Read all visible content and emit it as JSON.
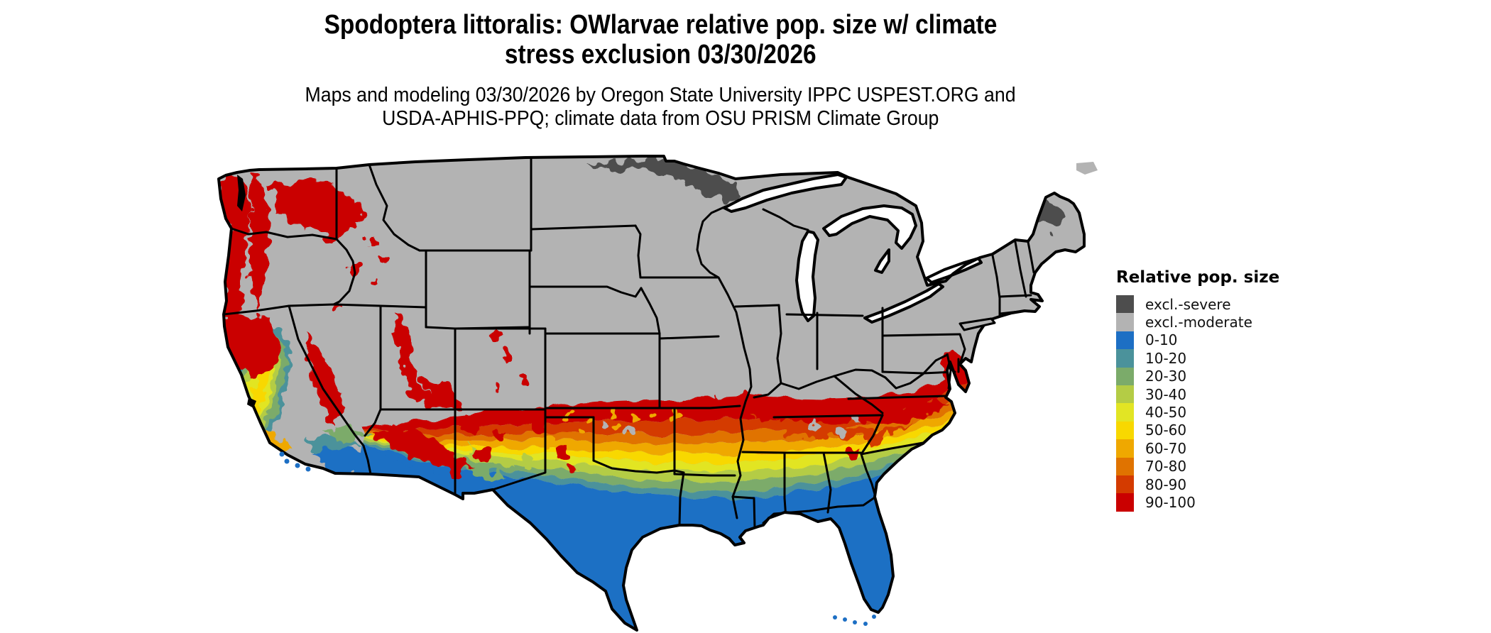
{
  "title": {
    "line1": "Spodoptera littoralis: OWlarvae relative pop. size w/ climate",
    "line2": "stress exclusion 03/30/2026"
  },
  "subtitle": {
    "line1": "Maps and modeling 03/30/2026 by Oregon State University IPPC USPEST.ORG and",
    "line2": "USDA-APHIS-PPQ; climate data from OSU PRISM Climate Group"
  },
  "legend": {
    "title": "Relative pop. size",
    "entries": [
      {
        "label": "excl.-severe",
        "color": "#4d4d4d"
      },
      {
        "label": "excl.-moderate",
        "color": "#b3b3b3"
      },
      {
        "label": "0-10",
        "color": "#1d6fc4"
      },
      {
        "label": "10-20",
        "color": "#4b929b"
      },
      {
        "label": "20-30",
        "color": "#7bab6a"
      },
      {
        "label": "30-40",
        "color": "#b4cc45"
      },
      {
        "label": "40-50",
        "color": "#e2e524"
      },
      {
        "label": "50-60",
        "color": "#f8d800"
      },
      {
        "label": "60-70",
        "color": "#efa800"
      },
      {
        "label": "70-80",
        "color": "#e07300"
      },
      {
        "label": "80-90",
        "color": "#d43b00"
      },
      {
        "label": "90-100",
        "color": "#ca0000"
      }
    ]
  },
  "map": {
    "region": "Continental United States",
    "land_default_class": "excl.-moderate",
    "water_color": "#ffffff",
    "boundary_color": "#000000"
  }
}
